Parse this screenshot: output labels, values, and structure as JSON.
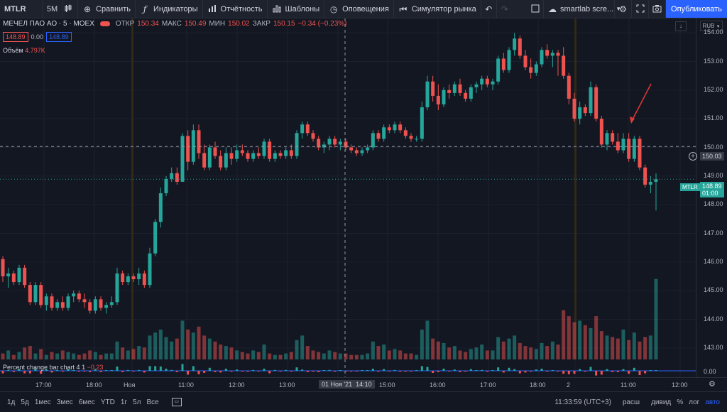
{
  "toolbar": {
    "symbol": "MTLR",
    "interval": "5М",
    "compare": "Сравнить",
    "indicators": "Индикаторы",
    "reports": "Отчётность",
    "templates": "Шаблоны",
    "alerts": "Оповещения",
    "simulator": "Симулятор рынка",
    "layout_name": "smartlab scre...",
    "publish": "Опубликовать"
  },
  "legend": {
    "title": "МЕЧЕЛ ПАО АО · 5 · MOEX",
    "open_label": "ОТКР",
    "open": "150.34",
    "high_label": "МАКС",
    "high": "150.49",
    "low_label": "МИН",
    "low": "150.02",
    "close_label": "ЗАКР",
    "close": "150.15",
    "change": "−0.34 (−0.23%)",
    "bid": "148.89",
    "spread": "0.00",
    "ask": "148.89",
    "volume_label": "Объём",
    "volume": "4.797K",
    "indicator_label": "Percent change bar chart 4 1",
    "indicator_value": "−0.23",
    "currency": "RUB"
  },
  "price_axis": [
    "154.00",
    "153.00",
    "152.00",
    "151.00",
    "150.00",
    "149.00",
    "148.00",
    "147.00",
    "146.00",
    "145.00",
    "144.00",
    "143.00"
  ],
  "indicator_axis": "0.00",
  "crosshair_price": "150.03",
  "last_price_tag": {
    "symbol": "MTLR",
    "price": "148.89",
    "countdown": "01:00"
  },
  "time_axis": [
    "17:00",
    "18:00",
    "Ноя",
    "11:00",
    "12:00",
    "13:00",
    "14:00",
    "15:00",
    "16:00",
    "17:00",
    "18:00",
    "2",
    "11:00",
    "12:00"
  ],
  "crosshair_time": "01 Ноя '21  14:10",
  "bottom": {
    "ranges": [
      "1д",
      "5д",
      "1мес",
      "3мес",
      "6мес",
      "YTD",
      "1г",
      "5л",
      "Все"
    ],
    "clock": "11:33:59 (UTC+3)",
    "session": "расш",
    "div": "дивид",
    "pct": "%",
    "log": "лог",
    "auto": "авто"
  },
  "colors": {
    "up": "#26a69a",
    "down": "#ef5350",
    "bg": "#131722",
    "accent": "#2962ff"
  },
  "chart_data": {
    "type": "candlestick",
    "ylim": [
      142.6,
      154.5
    ],
    "candles": [
      [
        146.1,
        146.2,
        145.3,
        145.5
      ],
      [
        145.5,
        145.8,
        145.1,
        145.6
      ],
      [
        145.6,
        145.7,
        145.2,
        145.3
      ],
      [
        145.3,
        145.9,
        145.2,
        145.8
      ],
      [
        145.8,
        145.9,
        145.1,
        145.2
      ],
      [
        145.2,
        145.3,
        144.5,
        144.6
      ],
      [
        144.6,
        145.3,
        144.5,
        145.2
      ],
      [
        145.2,
        145.3,
        144.4,
        144.5
      ],
      [
        144.5,
        144.9,
        144.3,
        144.8
      ],
      [
        144.8,
        144.9,
        144.3,
        144.4
      ],
      [
        144.4,
        144.7,
        144.3,
        144.6
      ],
      [
        144.6,
        144.8,
        144.3,
        144.4
      ],
      [
        144.4,
        144.9,
        144.3,
        144.8
      ],
      [
        144.8,
        145.0,
        144.6,
        144.9
      ],
      [
        144.9,
        145.0,
        144.6,
        144.7
      ],
      [
        144.7,
        144.9,
        144.4,
        144.6
      ],
      [
        144.6,
        144.7,
        144.2,
        144.3
      ],
      [
        144.3,
        144.8,
        144.2,
        144.7
      ],
      [
        144.7,
        144.8,
        144.3,
        144.4
      ],
      [
        144.4,
        144.6,
        144.2,
        144.5
      ],
      [
        144.5,
        144.8,
        144.4,
        144.6
      ],
      [
        144.6,
        145.8,
        144.5,
        145.6
      ],
      [
        145.6,
        145.7,
        145.2,
        145.3
      ],
      [
        145.3,
        145.6,
        145.2,
        145.5
      ],
      [
        145.5,
        145.6,
        145.3,
        145.4
      ],
      [
        145.4,
        145.8,
        145.2,
        145.6
      ],
      [
        145.6,
        145.7,
        145.1,
        145.2
      ],
      [
        145.2,
        146.5,
        145.1,
        146.3
      ],
      [
        146.3,
        147.5,
        146.2,
        147.4
      ],
      [
        147.4,
        148.6,
        147.2,
        148.4
      ],
      [
        148.4,
        149.0,
        148.3,
        148.9
      ],
      [
        148.9,
        149.3,
        148.8,
        149.1
      ],
      [
        149.1,
        149.3,
        148.7,
        148.8
      ],
      [
        148.8,
        150.5,
        148.8,
        150.4
      ],
      [
        150.4,
        150.6,
        149.2,
        149.5
      ],
      [
        149.5,
        150.8,
        149.4,
        150.6
      ],
      [
        150.6,
        150.8,
        149.6,
        149.8
      ],
      [
        149.8,
        150.1,
        149.2,
        149.3
      ],
      [
        149.3,
        150.1,
        149.2,
        150.0
      ],
      [
        150.0,
        150.2,
        149.6,
        149.7
      ],
      [
        149.7,
        149.9,
        149.2,
        149.3
      ],
      [
        149.3,
        150.0,
        149.2,
        149.8
      ],
      [
        149.8,
        150.0,
        149.4,
        149.6
      ],
      [
        149.6,
        150.1,
        149.5,
        149.9
      ],
      [
        149.9,
        150.1,
        149.7,
        149.8
      ],
      [
        149.8,
        149.9,
        149.5,
        149.6
      ],
      [
        149.6,
        149.9,
        149.5,
        149.8
      ],
      [
        149.8,
        150.0,
        149.6,
        149.7
      ],
      [
        149.7,
        150.3,
        149.6,
        150.2
      ],
      [
        150.2,
        150.3,
        149.5,
        149.6
      ],
      [
        149.6,
        149.9,
        149.5,
        149.8
      ],
      [
        149.8,
        149.9,
        149.6,
        149.7
      ],
      [
        149.7,
        150.0,
        149.6,
        149.9
      ],
      [
        149.9,
        150.1,
        149.6,
        149.7
      ],
      [
        149.7,
        150.6,
        149.6,
        150.5
      ],
      [
        150.5,
        150.9,
        150.3,
        150.8
      ],
      [
        150.8,
        150.9,
        150.4,
        150.5
      ],
      [
        150.5,
        150.6,
        150.2,
        150.3
      ],
      [
        150.3,
        150.4,
        149.9,
        150.0
      ],
      [
        150.0,
        150.2,
        149.8,
        150.1
      ],
      [
        150.1,
        150.4,
        149.9,
        150.3
      ],
      [
        150.3,
        150.4,
        150.0,
        150.1
      ],
      [
        150.1,
        150.3,
        149.9,
        150.2
      ],
      [
        150.2,
        150.3,
        149.9,
        150.0
      ],
      [
        150.0,
        150.1,
        149.8,
        149.9
      ],
      [
        149.9,
        150.0,
        149.7,
        149.8
      ],
      [
        149.8,
        150.0,
        149.7,
        149.9
      ],
      [
        149.9,
        150.1,
        149.8,
        150.0
      ],
      [
        150.0,
        150.6,
        149.9,
        150.5
      ],
      [
        150.5,
        150.6,
        150.2,
        150.3
      ],
      [
        150.3,
        150.8,
        150.2,
        150.7
      ],
      [
        150.7,
        150.8,
        150.5,
        150.6
      ],
      [
        150.6,
        150.9,
        150.5,
        150.8
      ],
      [
        150.8,
        150.9,
        150.5,
        150.6
      ],
      [
        150.6,
        150.7,
        150.3,
        150.4
      ],
      [
        150.4,
        150.5,
        150.2,
        150.3
      ],
      [
        150.3,
        150.4,
        150.2,
        150.3
      ],
      [
        150.3,
        151.6,
        150.2,
        151.4
      ],
      [
        151.4,
        152.5,
        151.3,
        152.3
      ],
      [
        152.3,
        152.5,
        151.6,
        151.8
      ],
      [
        151.8,
        152.2,
        151.3,
        151.5
      ],
      [
        151.5,
        152.1,
        151.4,
        152.0
      ],
      [
        152.0,
        152.2,
        151.7,
        151.9
      ],
      [
        151.9,
        152.3,
        151.8,
        152.2
      ],
      [
        152.2,
        152.4,
        151.8,
        151.9
      ],
      [
        151.9,
        152.0,
        151.6,
        151.7
      ],
      [
        151.7,
        152.2,
        151.6,
        152.1
      ],
      [
        152.1,
        152.3,
        151.9,
        152.2
      ],
      [
        152.2,
        152.5,
        152.0,
        152.4
      ],
      [
        152.4,
        152.5,
        152.1,
        152.2
      ],
      [
        152.2,
        152.4,
        152.0,
        152.3
      ],
      [
        152.3,
        153.2,
        152.2,
        153.1
      ],
      [
        153.1,
        153.3,
        152.6,
        152.7
      ],
      [
        152.7,
        153.5,
        152.6,
        153.4
      ],
      [
        153.4,
        154.0,
        153.2,
        153.8
      ],
      [
        153.8,
        153.9,
        153.1,
        153.2
      ],
      [
        153.2,
        153.4,
        152.7,
        152.8
      ],
      [
        152.8,
        153.1,
        152.4,
        152.6
      ],
      [
        152.6,
        153.0,
        152.5,
        152.9
      ],
      [
        152.9,
        153.5,
        152.8,
        153.4
      ],
      [
        153.4,
        153.6,
        153.1,
        153.2
      ],
      [
        153.2,
        153.4,
        152.8,
        153.3
      ],
      [
        153.3,
        153.4,
        152.5,
        153.2
      ],
      [
        153.2,
        153.5,
        152.4,
        152.5
      ],
      [
        152.5,
        152.6,
        151.5,
        151.7
      ],
      [
        151.7,
        151.9,
        150.9,
        151.0
      ],
      [
        151.0,
        151.6,
        150.8,
        151.4
      ],
      [
        151.4,
        151.5,
        151.1,
        151.2
      ],
      [
        151.2,
        152.3,
        151.1,
        152.1
      ],
      [
        152.1,
        152.2,
        150.9,
        151.0
      ],
      [
        151.0,
        151.1,
        150.0,
        150.1
      ],
      [
        150.1,
        150.6,
        149.9,
        150.5
      ],
      [
        150.5,
        150.6,
        150.1,
        150.2
      ],
      [
        150.2,
        150.5,
        149.8,
        149.9
      ],
      [
        149.9,
        150.5,
        149.8,
        150.3
      ],
      [
        150.3,
        150.5,
        149.5,
        149.6
      ],
      [
        149.6,
        150.4,
        149.5,
        150.3
      ],
      [
        150.3,
        150.4,
        149.2,
        149.3
      ],
      [
        149.3,
        149.4,
        148.6,
        148.7
      ],
      [
        148.7,
        149.0,
        148.4,
        148.8
      ],
      [
        148.8,
        149.1,
        147.8,
        148.89
      ]
    ],
    "volume_ylim": [
      0,
      500
    ],
    "volumes": [
      40,
      60,
      30,
      50,
      80,
      90,
      40,
      70,
      30,
      50,
      40,
      60,
      50,
      40,
      30,
      40,
      60,
      50,
      30,
      40,
      40,
      120,
      80,
      60,
      70,
      90,
      80,
      160,
      180,
      200,
      150,
      120,
      140,
      260,
      200,
      180,
      220,
      160,
      140,
      120,
      100,
      90,
      80,
      60,
      50,
      40,
      60,
      50,
      100,
      40,
      30,
      30,
      40,
      50,
      130,
      160,
      90,
      60,
      50,
      40,
      60,
      50,
      40,
      40,
      30,
      30,
      30,
      40,
      120,
      90,
      100,
      60,
      70,
      60,
      40,
      40,
      30,
      200,
      260,
      140,
      120,
      110,
      80,
      90,
      60,
      50,
      70,
      80,
      100,
      60,
      60,
      150,
      120,
      140,
      160,
      110,
      90,
      80,
      70,
      110,
      90,
      120,
      100,
      330,
      290,
      250,
      260,
      230,
      210,
      290,
      190,
      160,
      150,
      140,
      200,
      130,
      180,
      120,
      150,
      160,
      540
    ]
  }
}
